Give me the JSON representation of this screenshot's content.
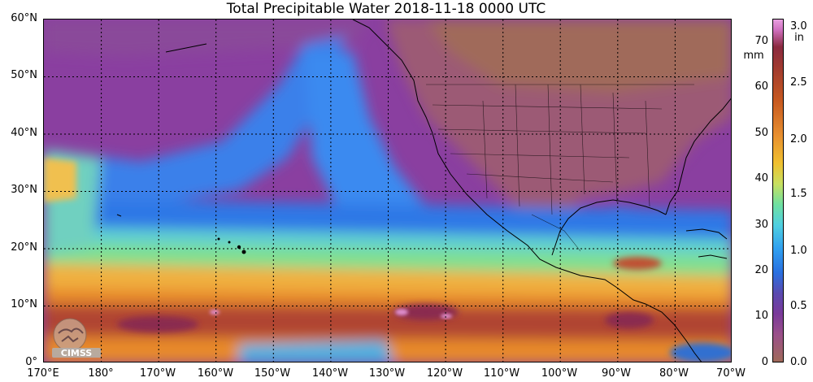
{
  "title": "Total Precipitable Water  2018-11-18 0000 UTC",
  "lat_labels": [
    "60°N",
    "50°N",
    "40°N",
    "30°N",
    "20°N",
    "10°N",
    "0°"
  ],
  "lon_labels": [
    "170°E",
    "180°",
    "170°W",
    "160°W",
    "150°W",
    "140°W",
    "130°W",
    "120°W",
    "110°W",
    "100°W",
    "90°W",
    "80°W",
    "70°W"
  ],
  "colorbar": {
    "mm_unit": "mm",
    "in_unit": "in",
    "mm_ticks": [
      "70",
      "60",
      "50",
      "40",
      "30",
      "20",
      "10",
      "0"
    ],
    "in_ticks": [
      "3.0",
      "2.5",
      "2.0",
      "1.5",
      "1.0",
      "0.5",
      "0.0"
    ]
  },
  "logo_text": "CIMSS",
  "colors": {
    "dry": "#a06a5a",
    "low": "#8a3fa0",
    "mid": "#3a8af0",
    "moist": "#f0a030",
    "very_moist": "#b0402a"
  }
}
